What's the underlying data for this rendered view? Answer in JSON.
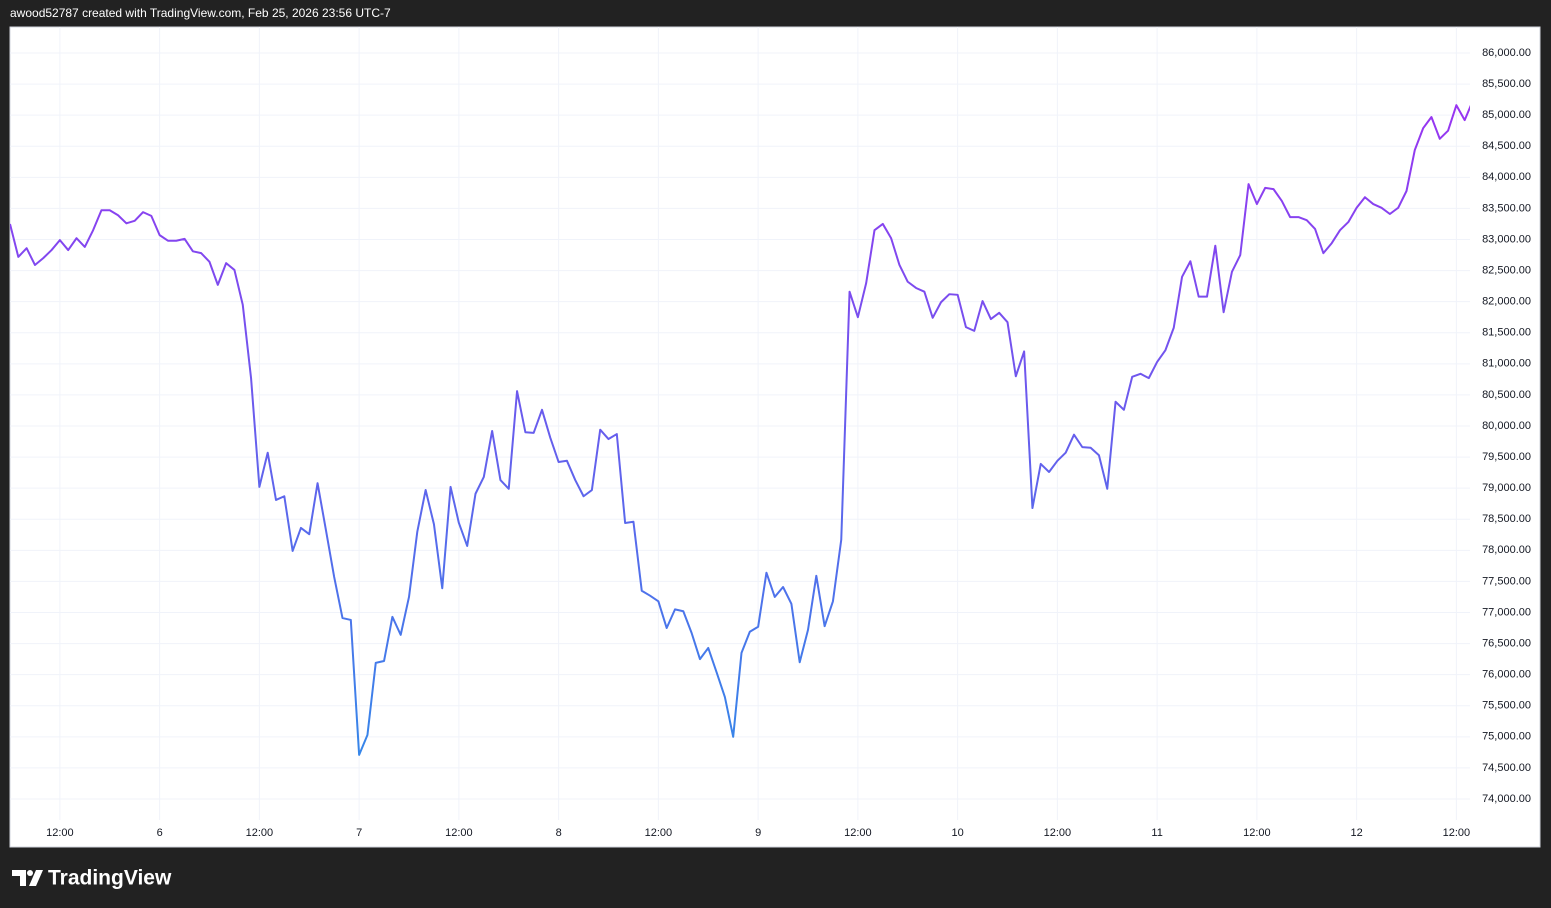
{
  "chart_data": {
    "type": "line",
    "title": "awood52787 created with TradingView.com, Feb 25, 2026 23:56 UTC-7",
    "logo_text": "TradingView",
    "line_colors": [
      "#a42bf2",
      "#2c8ee8"
    ],
    "grid": true,
    "ylim": [
      73662,
      86418
    ],
    "yticks": [
      {
        "value": 74000,
        "label": "74,000.00"
      },
      {
        "value": 74500,
        "label": "74,500.00"
      },
      {
        "value": 75000,
        "label": "75,000.00"
      },
      {
        "value": 75500,
        "label": "75,500.00"
      },
      {
        "value": 76000,
        "label": "76,000.00"
      },
      {
        "value": 76500,
        "label": "76,500.00"
      },
      {
        "value": 77000,
        "label": "77,000.00"
      },
      {
        "value": 77500,
        "label": "77,500.00"
      },
      {
        "value": 78000,
        "label": "78,000.00"
      },
      {
        "value": 78500,
        "label": "78,500.00"
      },
      {
        "value": 79000,
        "label": "79,000.00"
      },
      {
        "value": 79500,
        "label": "79,500.00"
      },
      {
        "value": 80000,
        "label": "80,000.00"
      },
      {
        "value": 80500,
        "label": "80,500.00"
      },
      {
        "value": 81000,
        "label": "81,000.00"
      },
      {
        "value": 81500,
        "label": "81,500.00"
      },
      {
        "value": 82000,
        "label": "82,000.00"
      },
      {
        "value": 82500,
        "label": "82,500.00"
      },
      {
        "value": 83000,
        "label": "83,000.00"
      },
      {
        "value": 83500,
        "label": "83,500.00"
      },
      {
        "value": 84000,
        "label": "84,000.00"
      },
      {
        "value": 84500,
        "label": "84,500.00"
      },
      {
        "value": 85000,
        "label": "85,000.00"
      },
      {
        "value": 85500,
        "label": "85,500.00"
      },
      {
        "value": 86000,
        "label": "86,000.00"
      }
    ],
    "categories": [
      null,
      null,
      null,
      null,
      null,
      null,
      "12:00",
      null,
      null,
      null,
      null,
      null,
      null,
      null,
      null,
      null,
      null,
      null,
      "6",
      null,
      null,
      null,
      null,
      null,
      null,
      null,
      null,
      null,
      null,
      null,
      "12:00",
      null,
      null,
      null,
      null,
      null,
      null,
      null,
      null,
      null,
      null,
      null,
      "7",
      null,
      null,
      null,
      null,
      null,
      null,
      null,
      null,
      null,
      null,
      null,
      "12:00",
      null,
      null,
      null,
      null,
      null,
      null,
      null,
      null,
      null,
      null,
      null,
      "8",
      null,
      null,
      null,
      null,
      null,
      null,
      null,
      null,
      null,
      null,
      null,
      "12:00",
      null,
      null,
      null,
      null,
      null,
      null,
      null,
      null,
      null,
      null,
      null,
      "9",
      null,
      null,
      null,
      null,
      null,
      null,
      null,
      null,
      null,
      null,
      null,
      "12:00",
      null,
      null,
      null,
      null,
      null,
      null,
      null,
      null,
      null,
      null,
      null,
      "10",
      null,
      null,
      null,
      null,
      null,
      null,
      null,
      null,
      null,
      null,
      null,
      "12:00",
      null,
      null,
      null,
      null,
      null,
      null,
      null,
      null,
      null,
      null,
      null,
      "11",
      null,
      null,
      null,
      null,
      null,
      null,
      null,
      null,
      null,
      null,
      null,
      "12:00",
      null,
      null,
      null,
      null,
      null,
      null,
      null,
      null,
      null,
      null,
      null,
      "12",
      null,
      null,
      null,
      null,
      null,
      null,
      null,
      null,
      null,
      null,
      null,
      "12:00",
      null,
      null
    ],
    "values": [
      83250,
      82720,
      82860,
      82590,
      82700,
      82830,
      82990,
      82830,
      83020,
      82880,
      83150,
      83470,
      83470,
      83390,
      83260,
      83300,
      83440,
      83380,
      83070,
      82980,
      82980,
      83010,
      82810,
      82780,
      82640,
      82270,
      82620,
      82510,
      81950,
      80770,
      79020,
      79570,
      78810,
      78870,
      77990,
      78360,
      78260,
      79080,
      78330,
      77570,
      76910,
      76880,
      74710,
      75030,
      76190,
      76220,
      76930,
      76640,
      77250,
      78300,
      78970,
      78420,
      77390,
      79020,
      78440,
      78070,
      78910,
      79180,
      79920,
      79130,
      78990,
      80560,
      79900,
      79890,
      80260,
      79810,
      79420,
      79440,
      79130,
      78870,
      78970,
      79940,
      79790,
      79870,
      78440,
      78460,
      77350,
      77270,
      77180,
      76750,
      77050,
      77020,
      76670,
      76250,
      76430,
      76040,
      75640,
      75000,
      76350,
      76690,
      76770,
      77640,
      77250,
      77410,
      77140,
      76200,
      76720,
      77590,
      76780,
      77180,
      78170,
      82160,
      81750,
      82300,
      83150,
      83250,
      83020,
      82590,
      82320,
      82220,
      82160,
      81740,
      81990,
      82120,
      82110,
      81590,
      81530,
      82010,
      81720,
      81820,
      81670,
      80800,
      81200,
      78680,
      79390,
      79260,
      79440,
      79570,
      79860,
      79660,
      79650,
      79530,
      78990,
      80390,
      80260,
      80790,
      80840,
      80770,
      81030,
      81220,
      81580,
      82400,
      82650,
      82080,
      82080,
      82900,
      81830,
      82480,
      82750,
      83890,
      83570,
      83830,
      83810,
      83620,
      83360,
      83360,
      83310,
      83170,
      82780,
      82940,
      83150,
      83280,
      83510,
      83680,
      83570,
      83510,
      83410,
      83510,
      83780,
      84440,
      84790,
      84970,
      84620,
      84750,
      85160,
      84920,
      85240
    ]
  }
}
